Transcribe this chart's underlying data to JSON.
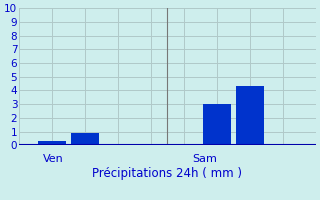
{
  "bar_values": [
    0.3,
    0.9,
    3.0,
    4.3
  ],
  "bar_positions": [
    1,
    2,
    6,
    7
  ],
  "bar_width": 0.85,
  "bar_color": "#0033cc",
  "background_color": "#ceeeed",
  "grid_color": "#b0c8c8",
  "xlabel": "Précipitations 24h ( mm )",
  "xlabel_color": "#0000cc",
  "tick_color": "#0000cc",
  "ylim": [
    0,
    10
  ],
  "yticks": [
    0,
    1,
    2,
    3,
    4,
    5,
    6,
    7,
    8,
    9,
    10
  ],
  "xticks": [
    0,
    1,
    2,
    3,
    4,
    5,
    6,
    7,
    8,
    9
  ],
  "ven_x": 0.08,
  "sam_x": 0.585,
  "ven_label": "Ven",
  "sam_label": "Sam",
  "label_color": "#0000cc",
  "separator_x": 4.5,
  "xlim": [
    0,
    9
  ]
}
